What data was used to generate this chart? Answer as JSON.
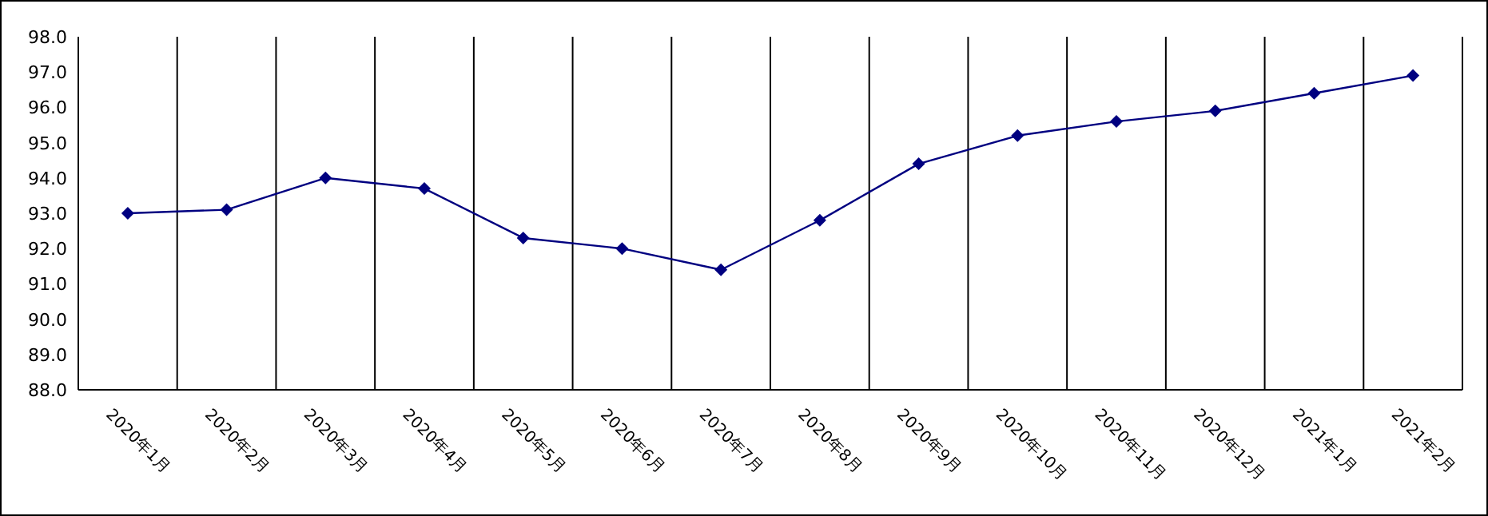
{
  "chart_data": {
    "type": "line",
    "categories": [
      "2020年1月",
      "2020年2月",
      "2020年3月",
      "2020年4月",
      "2020年5月",
      "2020年6月",
      "2020年7月",
      "2020年8月",
      "2020年9月",
      "2020年10月",
      "2020年11月",
      "2020年12月",
      "2021年1月",
      "2021年2月"
    ],
    "values": [
      93.0,
      93.1,
      94.0,
      93.7,
      92.3,
      92.0,
      91.4,
      92.8,
      94.4,
      95.2,
      95.6,
      95.9,
      96.4,
      96.9
    ],
    "color": "#000080",
    "marker": "diamond",
    "line_style": "solid",
    "grid": "x",
    "ylim": [
      88,
      98
    ],
    "yticks": [
      {
        "value": 88,
        "label": "88.0"
      },
      {
        "value": 89,
        "label": "89.0"
      },
      {
        "value": 90,
        "label": "90.0"
      },
      {
        "value": 91,
        "label": "91.0"
      },
      {
        "value": 92,
        "label": "92.0"
      },
      {
        "value": 93,
        "label": "93.0"
      },
      {
        "value": 94,
        "label": "94.0"
      },
      {
        "value": 95,
        "label": "95.0"
      },
      {
        "value": 96,
        "label": "96.0"
      },
      {
        "value": 97,
        "label": "97.0"
      },
      {
        "value": 98,
        "label": "98.0"
      }
    ]
  }
}
